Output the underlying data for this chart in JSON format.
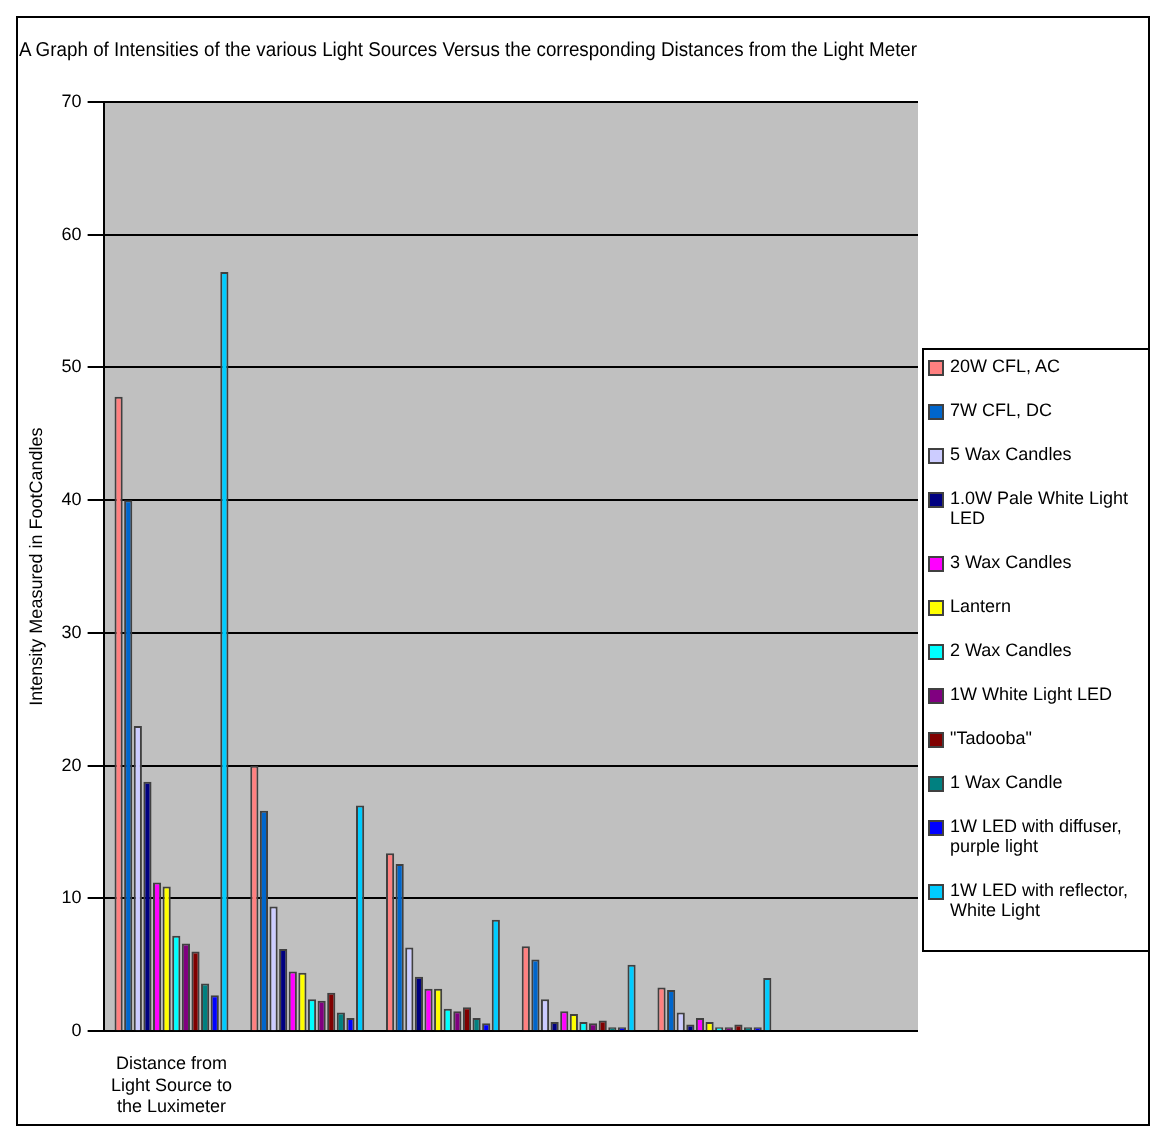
{
  "chart_data": {
    "type": "bar",
    "title": "A Graph of Intensities of the various Light Sources Versus the corresponding Distances from the Light Meter",
    "ylabel": "Intensity Measured in FootCandles",
    "categories": [
      "Distance from Light Source to the Luximeter",
      null,
      null,
      null,
      null,
      null
    ],
    "series": [
      {
        "name": "20W CFL, AC",
        "color": "#ff8080",
        "values": [
          47.8,
          20,
          13.4,
          6.4,
          3.3,
          null
        ]
      },
      {
        "name": "7W CFL, DC",
        "color": "#0066cc",
        "values": [
          40,
          16.6,
          12.6,
          5.4,
          3.1,
          null
        ]
      },
      {
        "name": "5 Wax Candles",
        "color": "#ccccff",
        "values": [
          23,
          9.4,
          6.3,
          2.4,
          1.4,
          null
        ]
      },
      {
        "name": "1.0W Pale White Light LED",
        "color": "#000080",
        "values": [
          18.8,
          6.2,
          4.1,
          0.7,
          0.5,
          null
        ]
      },
      {
        "name": "3 Wax Candles",
        "color": "#ff00ff",
        "values": [
          11.2,
          4.5,
          3.2,
          1.5,
          1.0,
          null
        ]
      },
      {
        "name": "Lantern",
        "color": "#ffff00",
        "values": [
          10.9,
          4.4,
          3.2,
          1.3,
          0.7,
          null
        ]
      },
      {
        "name": "2 Wax Candles",
        "color": "#00ffff",
        "values": [
          7.2,
          2.4,
          1.7,
          0.7,
          0.3,
          null
        ]
      },
      {
        "name": "1W White Light LED",
        "color": "#800080",
        "values": [
          6.6,
          2.3,
          1.5,
          0.6,
          0.3,
          null
        ]
      },
      {
        "name": "\"Tadooba\"",
        "color": "#800000",
        "values": [
          6.0,
          2.9,
          1.8,
          0.8,
          0.5,
          null
        ]
      },
      {
        "name": "1 Wax Candle",
        "color": "#008080",
        "values": [
          3.6,
          1.4,
          1.0,
          0.2,
          0.1,
          null
        ]
      },
      {
        "name": "1W LED with diffuser, purple light",
        "color": "#0000ff",
        "values": [
          2.7,
          1.0,
          0.6,
          0.2,
          0.1,
          null
        ]
      },
      {
        "name": "1W LED with reflector, White Light",
        "color": "#00ccff",
        "values": [
          57.2,
          17,
          8.4,
          5.0,
          4.0,
          null
        ]
      }
    ],
    "ylim": [
      0,
      70
    ],
    "yticks": [
      0,
      10,
      20,
      30,
      40,
      50,
      60,
      70
    ],
    "grid": "y",
    "legend": "right"
  }
}
